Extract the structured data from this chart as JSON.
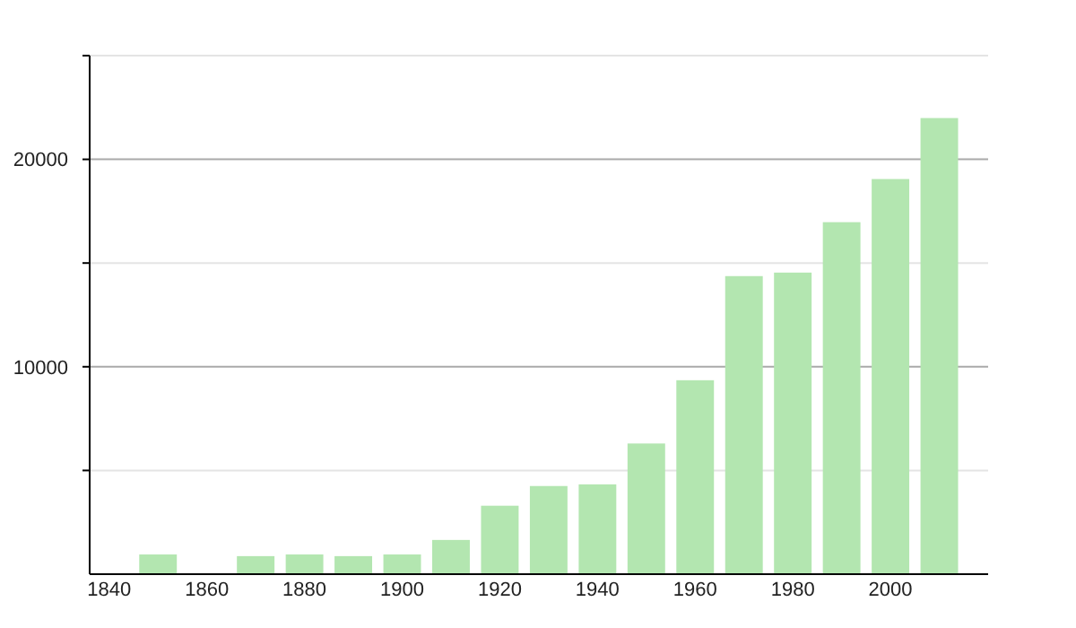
{
  "chart_data": {
    "type": "bar",
    "x": [
      1850,
      1870,
      1880,
      1890,
      1900,
      1910,
      1920,
      1930,
      1940,
      1950,
      1960,
      1970,
      1980,
      1990,
      2000,
      2010
    ],
    "values": [
      950,
      870,
      950,
      870,
      950,
      1650,
      3300,
      4250,
      4330,
      6300,
      9350,
      14370,
      14540,
      16970,
      19050,
      21990
    ],
    "color": "#b3e6b0",
    "xlim": [
      1836,
      2020
    ],
    "xticks": [
      1840,
      1860,
      1880,
      1900,
      1920,
      1940,
      1960,
      1980,
      2000
    ],
    "ylim": [
      0,
      25000
    ],
    "yticks": [
      {
        "value": 5000,
        "label": null
      },
      10000,
      {
        "value": 15000,
        "label": null
      },
      20000,
      {
        "value": 25000,
        "label": null
      }
    ],
    "grid": "y"
  }
}
